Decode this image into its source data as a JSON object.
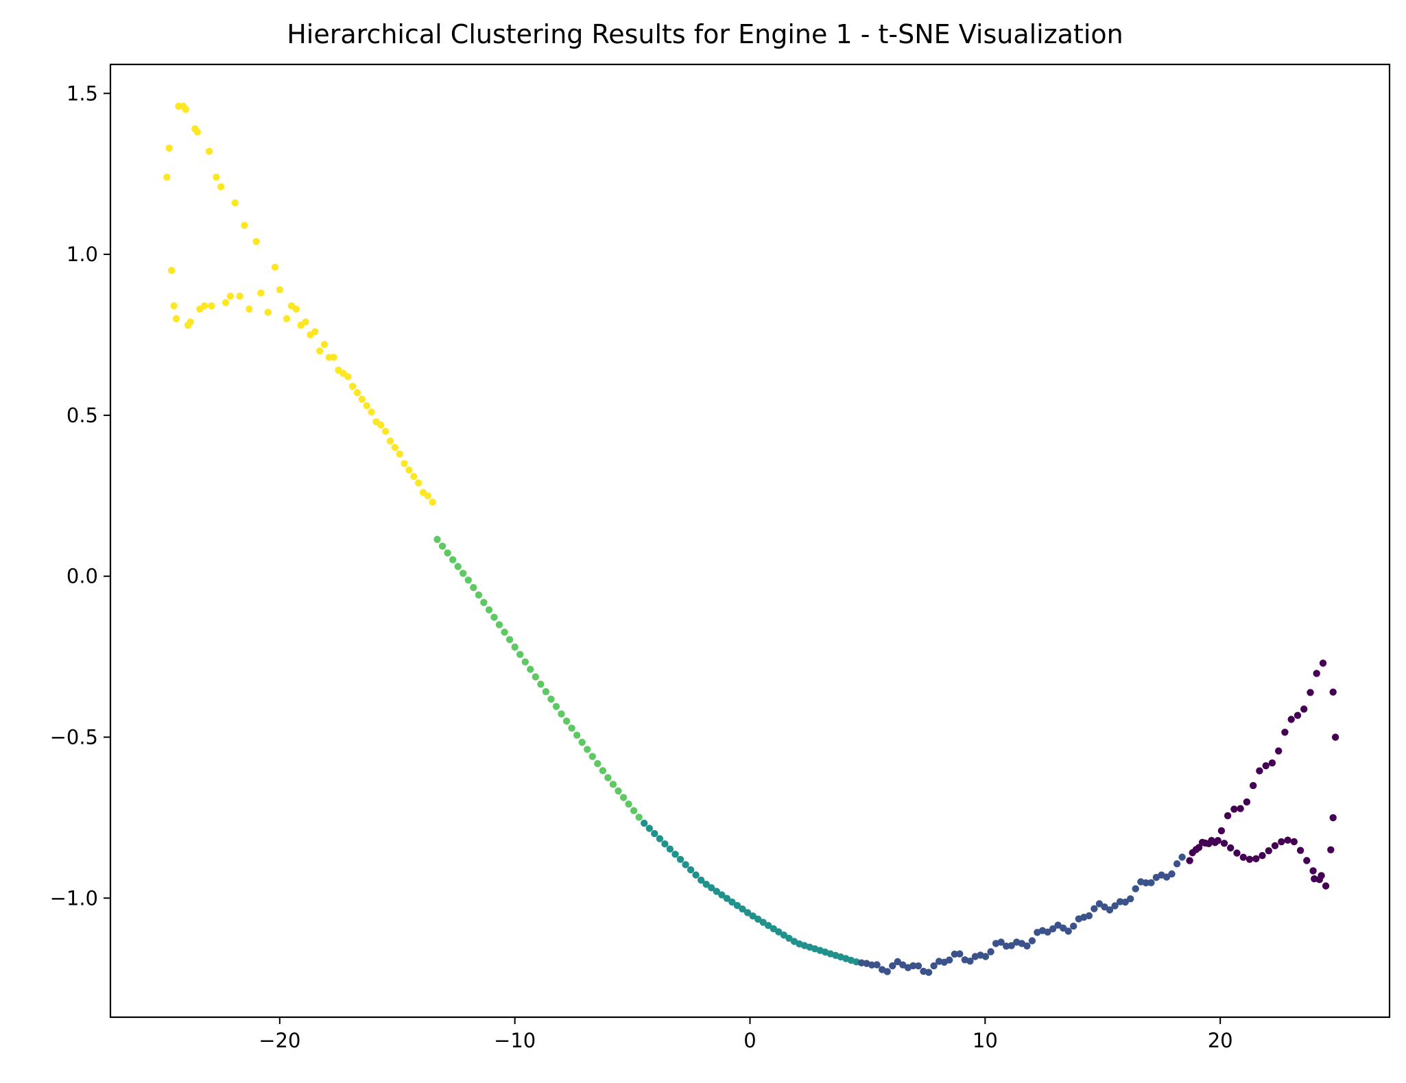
{
  "chart_data": {
    "type": "scatter",
    "title": "Hierarchical Clustering Results for Engine 1 - t-SNE Visualization",
    "xlabel": "",
    "ylabel": "",
    "xlim": [
      -27.2,
      27.2
    ],
    "ylim": [
      -1.37,
      1.59
    ],
    "x_ticks": [
      -20,
      -10,
      0,
      10,
      20
    ],
    "x_tick_labels": [
      "−20",
      "−10",
      "0",
      "10",
      "20"
    ],
    "y_ticks": [
      -1.0,
      -0.5,
      0.0,
      0.5,
      1.0,
      1.5
    ],
    "y_tick_labels": [
      "−1.0",
      "−0.5",
      "0.0",
      "0.5",
      "1.0",
      "1.5"
    ],
    "grid": false,
    "legend": "none",
    "colormap": "viridis",
    "cluster_colors": {
      "0": "#440154",
      "1": "#3b528b",
      "2": "#21918c",
      "3": "#5ec962",
      "4": "#fde725"
    },
    "curve_anchors": [
      [
        -20.0,
        0.79
      ],
      [
        -19.0,
        0.72
      ],
      [
        -18.0,
        0.61
      ],
      [
        -17.0,
        0.49
      ],
      [
        -16.0,
        0.36
      ],
      [
        -15.0,
        0.3
      ],
      [
        -14.3,
        0.21
      ],
      [
        -12.0,
        -0.01
      ],
      [
        -10.0,
        -0.22
      ],
      [
        -8.0,
        -0.43
      ],
      [
        -6.0,
        -0.63
      ],
      [
        -4.6,
        -0.76
      ],
      [
        -2.0,
        -0.95
      ],
      [
        0.0,
        -1.05
      ],
      [
        2.0,
        -1.14
      ],
      [
        4.6,
        -1.2
      ],
      [
        7.0,
        -1.22
      ],
      [
        10.0,
        -1.17
      ],
      [
        13.0,
        -1.1
      ],
      [
        16.0,
        -1.0
      ],
      [
        18.5,
        -0.88
      ]
    ],
    "series": [
      {
        "cluster": 4,
        "points": [
          [
            -24.8,
            1.24
          ],
          [
            -24.7,
            1.33
          ],
          [
            -24.6,
            0.95
          ],
          [
            -24.5,
            0.84
          ],
          [
            -24.4,
            0.8
          ],
          [
            -24.3,
            1.46
          ],
          [
            -24.1,
            1.46
          ],
          [
            -24.0,
            1.45
          ],
          [
            -23.9,
            0.78
          ],
          [
            -23.8,
            0.79
          ],
          [
            -23.6,
            1.39
          ],
          [
            -23.5,
            1.38
          ],
          [
            -23.4,
            0.83
          ],
          [
            -23.2,
            0.84
          ],
          [
            -23.0,
            1.32
          ],
          [
            -22.9,
            0.84
          ],
          [
            -22.7,
            1.24
          ],
          [
            -22.5,
            1.21
          ],
          [
            -22.3,
            0.85
          ],
          [
            -22.1,
            0.87
          ],
          [
            -21.9,
            1.16
          ],
          [
            -21.7,
            0.87
          ],
          [
            -21.5,
            1.09
          ],
          [
            -21.3,
            0.83
          ],
          [
            -21.0,
            1.04
          ],
          [
            -20.8,
            0.88
          ],
          [
            -20.5,
            0.82
          ],
          [
            -20.2,
            0.96
          ],
          [
            -20.0,
            0.89
          ],
          [
            -19.7,
            0.8
          ],
          [
            -19.5,
            0.84
          ],
          [
            -19.3,
            0.83
          ],
          [
            -19.1,
            0.78
          ],
          [
            -18.9,
            0.79
          ],
          [
            -18.7,
            0.75
          ],
          [
            -18.5,
            0.76
          ],
          [
            -18.3,
            0.7
          ],
          [
            -18.1,
            0.72
          ],
          [
            -17.9,
            0.68
          ],
          [
            -17.7,
            0.68
          ],
          [
            -17.5,
            0.64
          ],
          [
            -17.3,
            0.63
          ],
          [
            -17.1,
            0.62
          ],
          [
            -16.9,
            0.59
          ],
          [
            -16.7,
            0.57
          ],
          [
            -16.5,
            0.55
          ],
          [
            -16.3,
            0.53
          ],
          [
            -16.1,
            0.51
          ],
          [
            -15.9,
            0.48
          ],
          [
            -15.7,
            0.47
          ],
          [
            -15.5,
            0.45
          ],
          [
            -15.3,
            0.42
          ],
          [
            -15.1,
            0.4
          ],
          [
            -14.9,
            0.38
          ],
          [
            -14.7,
            0.35
          ],
          [
            -14.5,
            0.33
          ],
          [
            -14.3,
            0.31
          ],
          [
            -14.1,
            0.29
          ],
          [
            -13.9,
            0.26
          ],
          [
            -13.7,
            0.25
          ],
          [
            -13.5,
            0.23
          ]
        ]
      }
    ]
  }
}
